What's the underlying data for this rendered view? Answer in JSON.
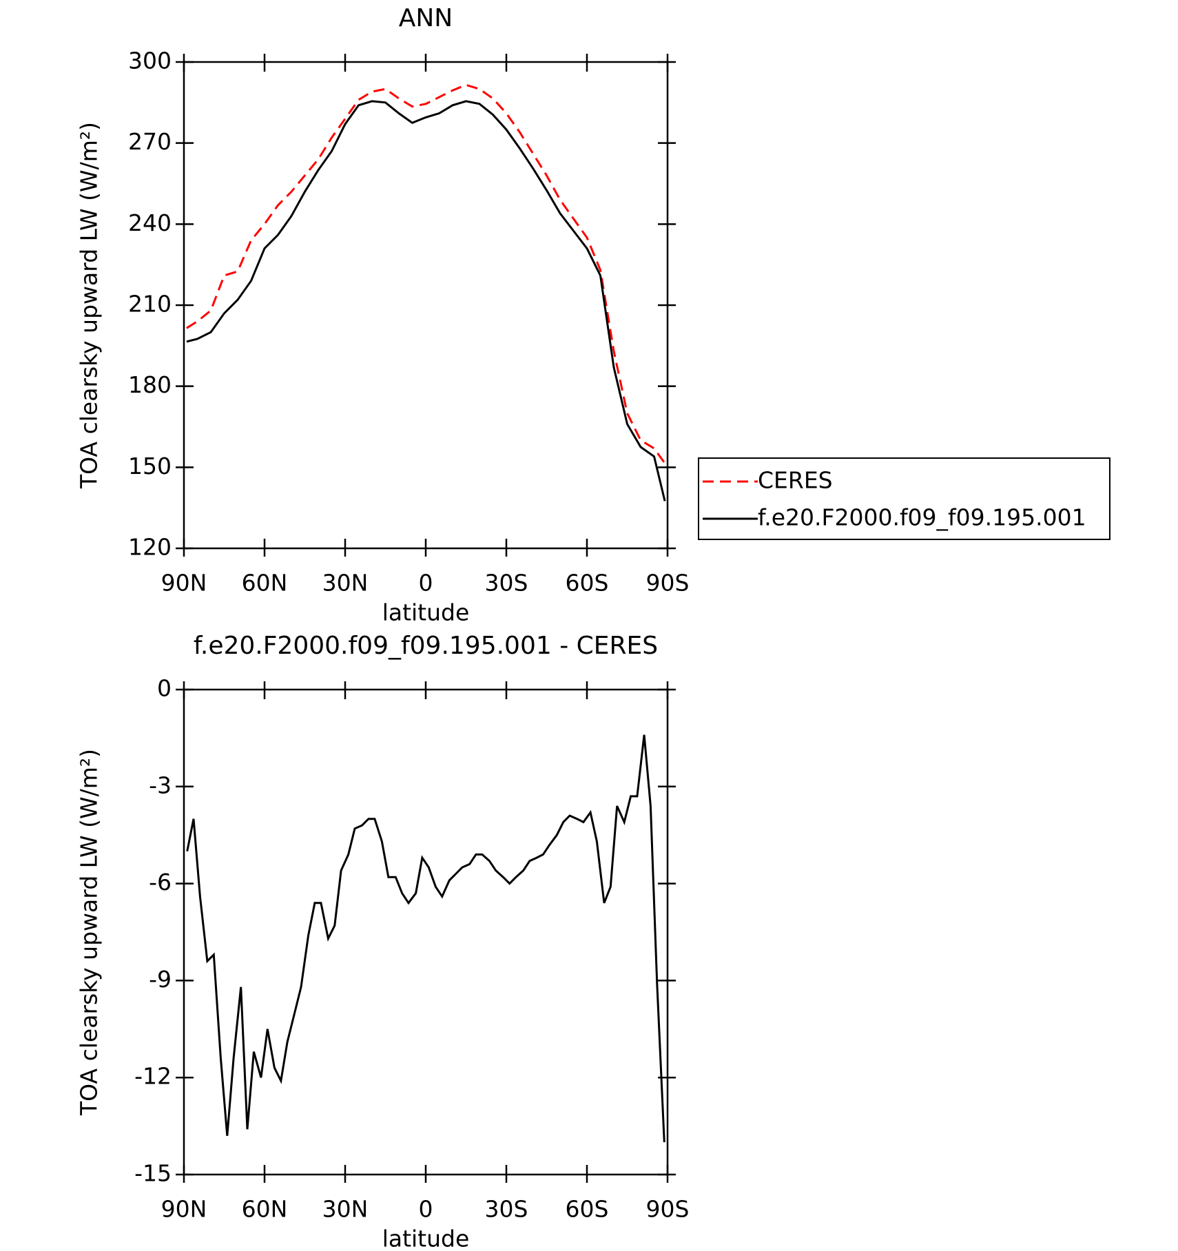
{
  "chart_data": [
    {
      "type": "line",
      "title": "ANN",
      "x_label": "latitude",
      "y_label": "TOA clearsky upward LW (W/m²)",
      "x": [
        89,
        85,
        80,
        75,
        70,
        65,
        60,
        55,
        50,
        45,
        40,
        35,
        30,
        25,
        20,
        15,
        10,
        5,
        0,
        -5,
        -10,
        -15,
        -20,
        -25,
        -30,
        -35,
        -40,
        -45,
        -50,
        -55,
        -60,
        -65,
        -70,
        -75,
        -80,
        -85,
        -89
      ],
      "series": [
        {
          "name": "CERES",
          "color": "#ff0000",
          "style": "dashed",
          "values": [
            201.5,
            204,
            208,
            221,
            222.5,
            234,
            240,
            247,
            252,
            258,
            264,
            272,
            279,
            286,
            289,
            290,
            286.5,
            283.5,
            284.5,
            287,
            289.5,
            291.5,
            290,
            286.5,
            281,
            274,
            266,
            258,
            249,
            242,
            235,
            223,
            193,
            170,
            160,
            157,
            151.5
          ]
        },
        {
          "name": "f.e20.F2000.f09_f09.195.001",
          "color": "#000000",
          "style": "solid",
          "values": [
            196.5,
            197.5,
            200,
            207,
            212,
            219,
            231,
            236,
            243,
            252,
            260,
            267,
            277,
            284,
            285.5,
            285,
            281,
            277.5,
            279.5,
            281,
            284,
            285.5,
            284.5,
            280.5,
            275,
            268,
            260.5,
            252.5,
            244,
            237.5,
            231,
            221,
            187,
            166,
            157.5,
            154,
            137.5
          ]
        }
      ],
      "xlim": [
        90,
        -90
      ],
      "xticks": [
        {
          "value": 90,
          "label": "90N"
        },
        {
          "value": 60,
          "label": "60N"
        },
        {
          "value": 30,
          "label": "30N"
        },
        0,
        {
          "value": -30,
          "label": "30S"
        },
        {
          "value": -60,
          "label": "60S"
        },
        {
          "value": -90,
          "label": "90S"
        }
      ],
      "ylim": [
        120,
        300
      ],
      "yticks": [
        120,
        150,
        180,
        210,
        240,
        270,
        300
      ],
      "legend": "right"
    },
    {
      "type": "line",
      "title": "f.e20.F2000.f09_f09.195.001 - CERES",
      "x_label": "latitude",
      "y_label": "TOA clearsky upward LW (W/m²)",
      "x": [
        88.8,
        86.4,
        84,
        81.3,
        78.9,
        76.3,
        73.9,
        71.5,
        68.8,
        66.4,
        64,
        61.3,
        58.9,
        56.3,
        53.9,
        51.5,
        48.8,
        46.4,
        43.7,
        41.3,
        39,
        36.3,
        33.9,
        31.5,
        28.8,
        26.4,
        23.7,
        21.3,
        19,
        16.3,
        13.9,
        11.2,
        8.8,
        6.4,
        3.7,
        1.3,
        -1.1,
        -3.7,
        -6.1,
        -8.8,
        -11.2,
        -13.6,
        -16.3,
        -18.7,
        -21,
        -23.7,
        -26.1,
        -28.8,
        -31.2,
        -33.6,
        -36.3,
        -38.7,
        -41.3,
        -43.7,
        -46.1,
        -48.8,
        -51.2,
        -53.6,
        -56.3,
        -58.7,
        -61.3,
        -63.7,
        -66.4,
        -68.8,
        -71.2,
        -73.9,
        -76.3,
        -78.7,
        -81.3,
        -83.7,
        -86.1,
        -88.8
      ],
      "series": [
        {
          "color": "#000000",
          "style": "solid",
          "values": [
            -5.0,
            -4.0,
            -6.4,
            -8.4,
            -8.2,
            -11.4,
            -13.8,
            -11.4,
            -9.2,
            -13.6,
            -11.2,
            -12.0,
            -10.5,
            -11.7,
            -12.1,
            -10.9,
            -10.0,
            -9.2,
            -7.6,
            -6.6,
            -6.6,
            -7.7,
            -7.3,
            -5.6,
            -5.1,
            -4.3,
            -4.2,
            -4.0,
            -4.0,
            -4.7,
            -5.8,
            -5.8,
            -6.3,
            -6.6,
            -6.3,
            -5.2,
            -5.5,
            -6.1,
            -6.4,
            -5.9,
            -5.7,
            -5.5,
            -5.4,
            -5.1,
            -5.1,
            -5.3,
            -5.6,
            -5.8,
            -6.0,
            -5.8,
            -5.6,
            -5.3,
            -5.2,
            -5.1,
            -4.8,
            -4.5,
            -4.1,
            -3.9,
            -4.0,
            -4.1,
            -3.8,
            -4.7,
            -6.6,
            -6.1,
            -3.6,
            -4.1,
            -3.3,
            -3.3,
            -1.4,
            -3.6,
            -9.1,
            -14.0
          ]
        }
      ],
      "xlim": [
        90,
        -90
      ],
      "xticks": [
        {
          "value": 90,
          "label": "90N"
        },
        {
          "value": 60,
          "label": "60N"
        },
        {
          "value": 30,
          "label": "30N"
        },
        0,
        {
          "value": -30,
          "label": "30S"
        },
        {
          "value": -60,
          "label": "60S"
        },
        {
          "value": -90,
          "label": "90S"
        }
      ],
      "ylim": [
        -15,
        0
      ],
      "yticks": [
        -15,
        -12,
        -9,
        -6,
        -3,
        0
      ]
    }
  ]
}
